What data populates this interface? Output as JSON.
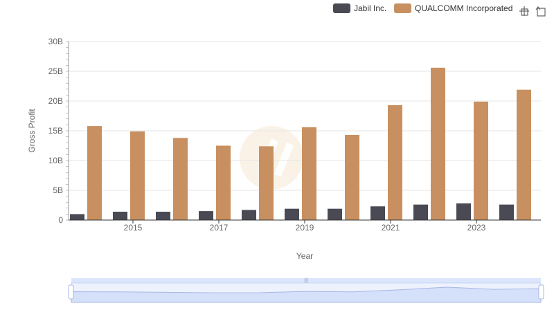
{
  "chart_data": {
    "type": "bar",
    "xlabel": "Year",
    "ylabel": "Gross Profit",
    "ylim": [
      0,
      30
    ],
    "y_unit": "B",
    "y_ticks": [
      "0",
      "5B",
      "10B",
      "15B",
      "20B",
      "25B",
      "30B"
    ],
    "x_tick_labels": [
      "2015",
      "2017",
      "2019",
      "2021",
      "2023"
    ],
    "categories": [
      "2014",
      "2015",
      "2016",
      "2017",
      "2018",
      "2019",
      "2020",
      "2021",
      "2022",
      "2023",
      "2024"
    ],
    "series": [
      {
        "name": "Jabil Inc.",
        "color": "#4a4a55",
        "values": [
          1.0,
          1.4,
          1.4,
          1.5,
          1.7,
          1.9,
          1.9,
          2.3,
          2.6,
          2.8,
          2.6
        ]
      },
      {
        "name": "QUALCOMM Incorporated",
        "color": "#c89060",
        "values": [
          15.8,
          14.9,
          13.8,
          12.5,
          12.4,
          15.6,
          14.3,
          19.3,
          25.6,
          19.9,
          21.9
        ]
      }
    ],
    "grid": true,
    "legend_position": "top-right"
  },
  "toolbar": {
    "icons": [
      "zoom-icon",
      "reset-icon"
    ]
  },
  "colors": {
    "grid": "#e6e6e6",
    "slider_fill": "#dbe5fb",
    "slider_border": "#a7b7e6",
    "watermark": "#f3e3cc"
  }
}
